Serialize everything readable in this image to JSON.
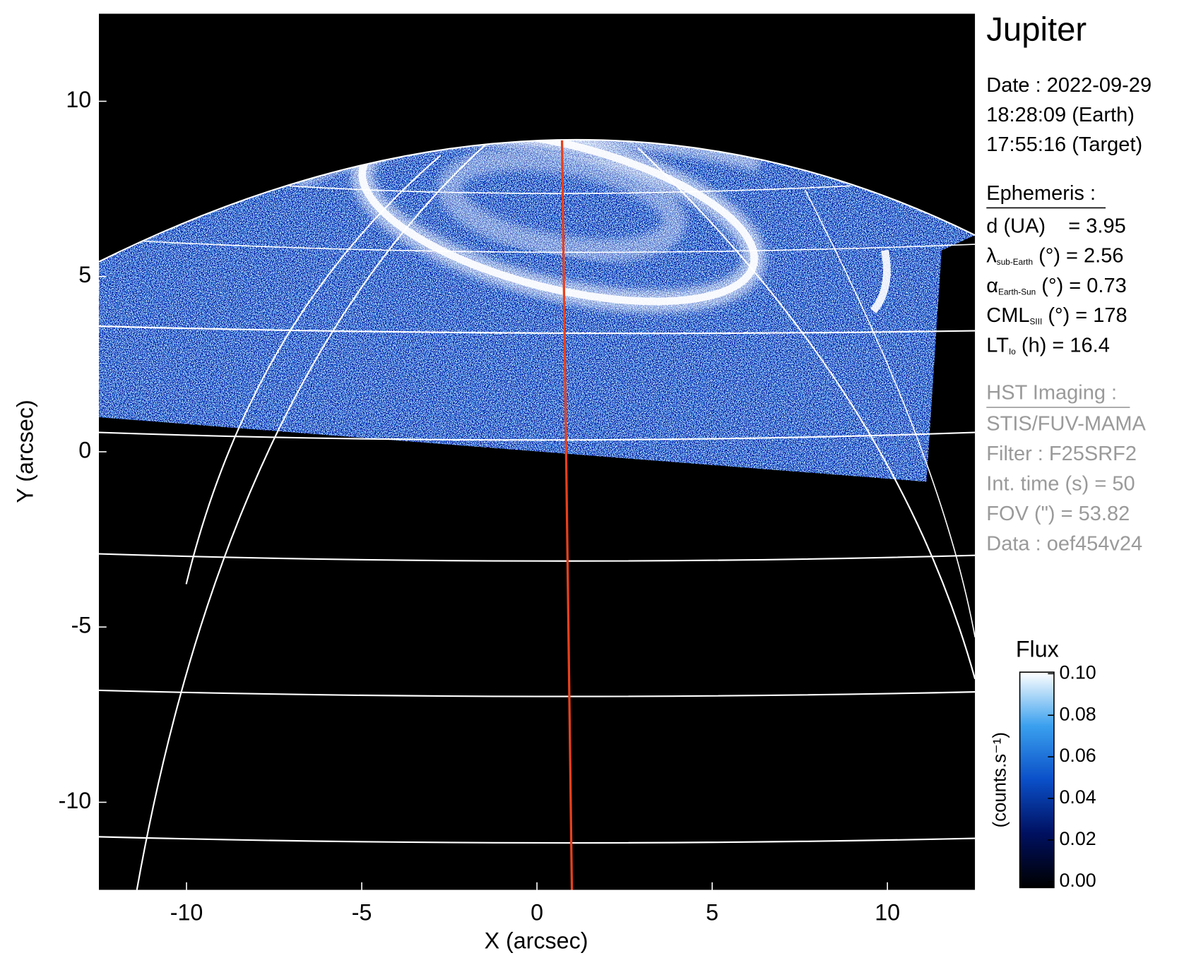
{
  "chart_data": {
    "type": "image",
    "title": "Jupiter",
    "xlabel": "X (arcsec)",
    "ylabel": "Y (arcsec)",
    "xlim": [
      -12.5,
      12.5
    ],
    "ylim": [
      -12.5,
      12.5
    ],
    "xticks": [
      -10,
      -5,
      0,
      5,
      10
    ],
    "yticks": [
      -10,
      -5,
      0,
      5,
      10
    ],
    "colorbar": {
      "title": "Flux",
      "label": "(counts.s⁻¹)",
      "clim": [
        0,
        0.1
      ],
      "ticks": [
        {
          "value": 0,
          "label": "0.00"
        },
        {
          "value": 0.02,
          "label": "0.02"
        },
        {
          "value": 0.04,
          "label": "0.04"
        },
        {
          "value": 0.06,
          "label": "0.06"
        },
        {
          "value": 0.08,
          "label": "0.08"
        },
        {
          "value": 0.1,
          "label": "0.10"
        }
      ]
    },
    "date_lines": [
      "Date : 2022-09-29",
      "18:28:09 (Earth)",
      "17:55:16 (Target)"
    ],
    "ephemeris": {
      "heading": "Ephemeris :",
      "entries": [
        {
          "main": "d (UA)    = 3.95"
        },
        {
          "main": "λ",
          "sub": "sub-Earth",
          "rest": " (°) = 2.56"
        },
        {
          "main": "α",
          "sub": "Earth-Sun",
          "rest": " (°) = 0.73"
        },
        {
          "main": "CML",
          "sub": "SIII",
          "rest": " (°) = 178"
        },
        {
          "main": "LT",
          "sub": "Io",
          "rest": " (h) = 16.4"
        }
      ]
    },
    "hst": {
      "heading": "HST Imaging :",
      "lines": [
        "STIS/FUV-MAMA",
        "Filter : F25SRF2",
        "Int. time (s) = 50",
        "FOV (\") = 53.82",
        "Data : oef454v24"
      ]
    }
  }
}
